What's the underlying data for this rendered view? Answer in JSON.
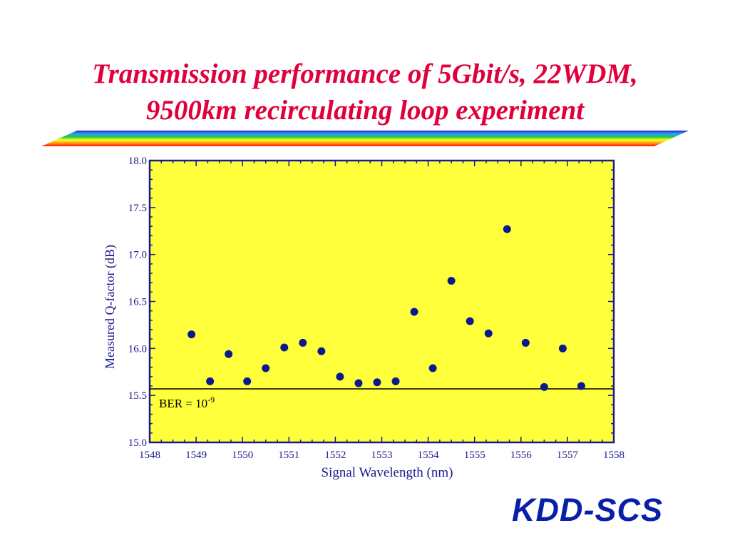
{
  "slide": {
    "title_line1": "Transmission performance of 5Gbit/s, 22WDM,",
    "title_line2": "9500km recirculating loop experiment",
    "logo": "KDD-SCS"
  },
  "colors": {
    "title": "#e0003c",
    "plot_background": "#ffff3c",
    "axis_text": "#1a1a8c",
    "frame": "#1a1a8c",
    "points": "#0a1a8c",
    "logo": "#0a1fa8"
  },
  "chart_data": {
    "type": "scatter",
    "title": "",
    "xlabel": "Signal Wavelength (nm)",
    "ylabel": "Measured Q-factor (dB)",
    "xlim": [
      1548,
      1558
    ],
    "ylim": [
      15.0,
      18.0
    ],
    "xticks": [
      "1548",
      "1549",
      "1550",
      "1551",
      "1552",
      "1553",
      "1554",
      "1555",
      "1556",
      "1557",
      "1558"
    ],
    "yticks": [
      "15.0",
      "15.5",
      "16.0",
      "16.5",
      "17.0",
      "17.5",
      "18.0"
    ],
    "grid": false,
    "reference_line": {
      "y": 15.57,
      "label_base": "BER = 10",
      "label_exp": "-9"
    },
    "points": [
      {
        "x": 1548.9,
        "y": 16.15
      },
      {
        "x": 1549.3,
        "y": 15.65
      },
      {
        "x": 1549.7,
        "y": 15.94
      },
      {
        "x": 1550.1,
        "y": 15.65
      },
      {
        "x": 1550.5,
        "y": 15.79
      },
      {
        "x": 1550.9,
        "y": 16.01
      },
      {
        "x": 1551.3,
        "y": 16.06
      },
      {
        "x": 1551.7,
        "y": 15.97
      },
      {
        "x": 1552.1,
        "y": 15.7
      },
      {
        "x": 1552.5,
        "y": 15.63
      },
      {
        "x": 1552.9,
        "y": 15.64
      },
      {
        "x": 1553.3,
        "y": 15.65
      },
      {
        "x": 1553.7,
        "y": 16.39
      },
      {
        "x": 1554.1,
        "y": 15.79
      },
      {
        "x": 1554.5,
        "y": 16.72
      },
      {
        "x": 1554.9,
        "y": 16.29
      },
      {
        "x": 1555.3,
        "y": 16.16
      },
      {
        "x": 1555.7,
        "y": 17.27
      },
      {
        "x": 1556.1,
        "y": 16.06
      },
      {
        "x": 1556.5,
        "y": 15.59
      },
      {
        "x": 1556.9,
        "y": 16.0
      },
      {
        "x": 1557.3,
        "y": 15.6
      }
    ]
  }
}
